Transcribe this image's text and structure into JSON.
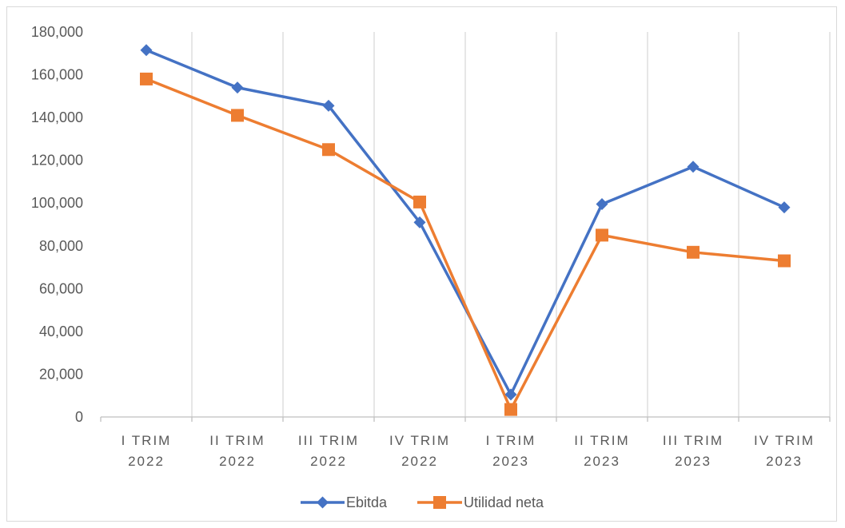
{
  "chart_data": {
    "type": "line",
    "categories": [
      [
        "I TRIM",
        "2022"
      ],
      [
        "II TRIM",
        "2022"
      ],
      [
        "III TRIM",
        "2022"
      ],
      [
        "IV TRIM",
        "2022"
      ],
      [
        "I TRIM",
        "2023"
      ],
      [
        "II TRIM",
        "2023"
      ],
      [
        "III TRIM",
        "2023"
      ],
      [
        "IV TRIM",
        "2023"
      ]
    ],
    "series": [
      {
        "name": "Ebitda",
        "color": "#4472c4",
        "marker": "diamond",
        "values": [
          171500,
          154000,
          145500,
          91000,
          10500,
          99500,
          117000,
          98000
        ]
      },
      {
        "name": "Utilidad neta",
        "color": "#ed7d31",
        "marker": "square",
        "values": [
          158000,
          141000,
          125000,
          100500,
          3500,
          85000,
          77000,
          73000
        ]
      }
    ],
    "ylim": [
      0,
      180000
    ],
    "yticks": [
      "0",
      "20,000",
      "40,000",
      "60,000",
      "80,000",
      "100,000",
      "120,000",
      "140,000",
      "160,000",
      "180,000"
    ],
    "grid": "vertical",
    "legend": "bottom"
  }
}
